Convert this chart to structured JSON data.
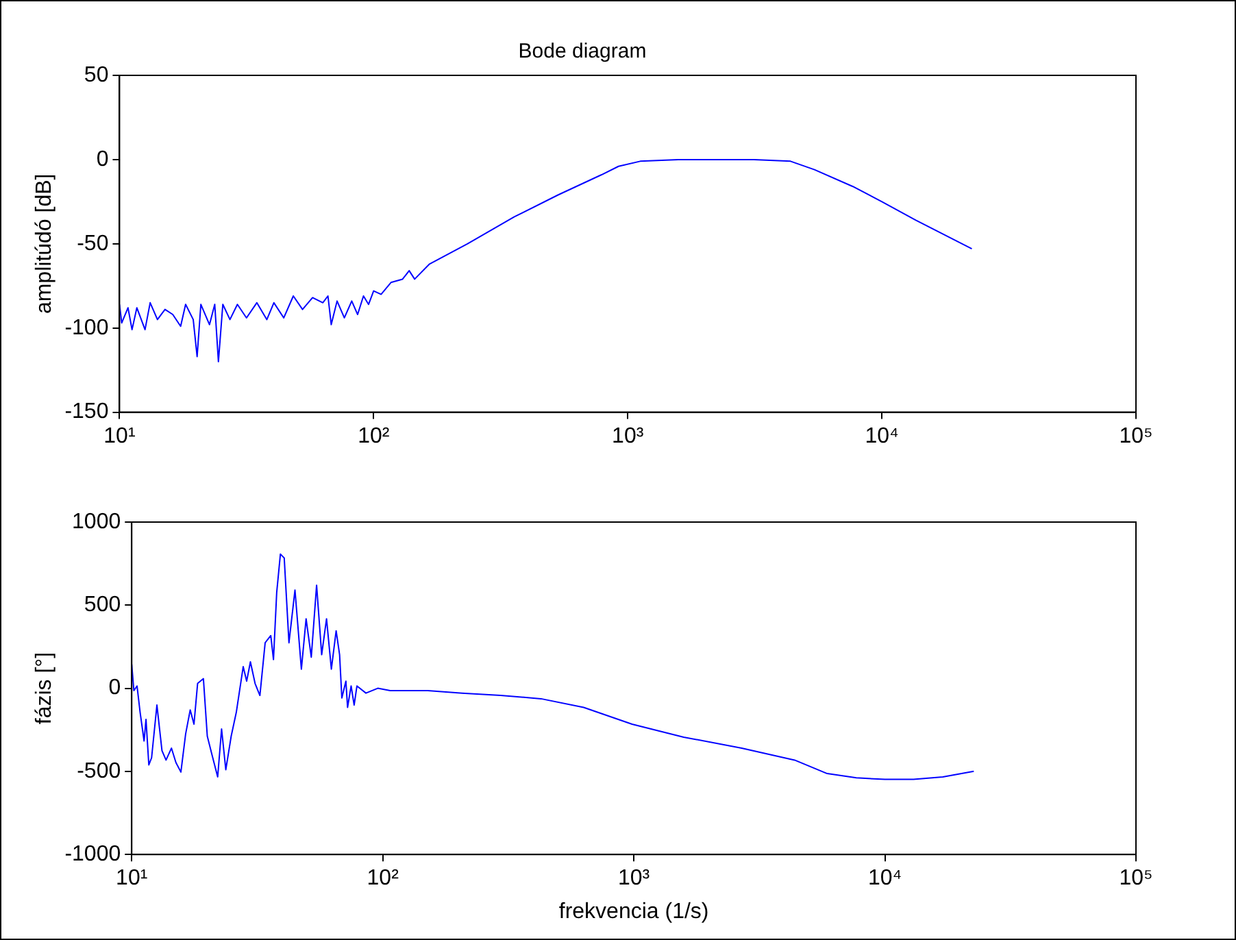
{
  "chart_data": [
    {
      "type": "line",
      "title": "Bode diagram",
      "ylabel": "amplitúdó [dB]",
      "log": "x",
      "grid": false,
      "xlim": [
        10,
        100000
      ],
      "ylim": [
        -150,
        50
      ],
      "xticks": [
        {
          "value": 10,
          "label": "10¹"
        },
        {
          "value": 100,
          "label": "10²"
        },
        {
          "value": 1000,
          "label": "10³"
        },
        {
          "value": 10000,
          "label": "10⁴"
        },
        {
          "value": 100000,
          "label": "10⁵"
        }
      ],
      "yticks": [
        -150,
        -100,
        -50,
        0,
        50
      ],
      "series": [
        {
          "color": "#0000ff",
          "x": [
            10,
            10.2,
            10.8,
            11.2,
            11.7,
            12.6,
            13.2,
            14.1,
            15.1,
            16.2,
            17.4,
            18.2,
            19.5,
            20.2,
            20.9,
            22.6,
            23.7,
            24.5,
            25.5,
            27.2,
            29.1,
            31.6,
            34.7,
            38.0,
            40.5,
            44.3,
            48.3,
            52.5,
            57.5,
            63.1,
            66.1,
            68.1,
            71.8,
            76.7,
            82.0,
            86.5,
            91.2,
            95.5,
            100,
            107,
            117,
            130,
            138,
            145,
            166,
            234,
            358,
            532,
            789,
            920,
            1120,
            1580,
            3140,
            4370,
            5430,
            7690,
            10000,
            13600,
            22600
          ],
          "values": [
            -86,
            -97,
            -88,
            -101,
            -88,
            -101,
            -85,
            -95,
            -89,
            -92,
            -99,
            -86,
            -95,
            -117,
            -86,
            -98,
            -86,
            -120,
            -86,
            -95,
            -86,
            -94,
            -85,
            -95,
            -85,
            -94,
            -81,
            -89,
            -82,
            -85,
            -81,
            -98,
            -84,
            -94,
            -84,
            -92,
            -81,
            -86,
            -78,
            -80,
            -73,
            -71,
            -66,
            -71,
            -62,
            -50,
            -34,
            -21,
            -9,
            -4,
            -1,
            0,
            0,
            -1,
            -6,
            -16,
            -25,
            -36,
            -53
          ]
        }
      ]
    },
    {
      "type": "line",
      "xlabel": "frekvencia (1/s)",
      "ylabel": "fázis [°]",
      "log": "x",
      "grid": false,
      "xlim": [
        10,
        100000
      ],
      "ylim": [
        -1000,
        1000
      ],
      "xticks": [
        {
          "value": 10,
          "label": "10¹"
        },
        {
          "value": 100,
          "label": "10²"
        },
        {
          "value": 1000,
          "label": "10³"
        },
        {
          "value": 10000,
          "label": "10⁴"
        },
        {
          "value": 100000,
          "label": "10⁵"
        }
      ],
      "yticks": [
        -1000,
        -500,
        0,
        500,
        1000
      ],
      "series": [
        {
          "color": "#0000ff",
          "x": [
            10,
            10.2,
            10.5,
            10.8,
            11.2,
            11.4,
            11.7,
            12.0,
            12.6,
            13.2,
            13.7,
            14.4,
            15.0,
            15.7,
            16.4,
            17.1,
            17.7,
            18.3,
            19.3,
            20.0,
            20.9,
            22.0,
            22.8,
            23.7,
            24.9,
            26.1,
            27.8,
            28.7,
            29.7,
            31.0,
            32.4,
            34.0,
            35.8,
            36.7,
            37.8,
            39.1,
            40.5,
            42.3,
            44.7,
            47.4,
            49.5,
            51.9,
            54.5,
            57.1,
            59.7,
            62.4,
            65.2,
            67.3,
            68.7,
            71.3,
            72.4,
            74.8,
            76.9,
            78.9,
            85.7,
            95.5,
            107,
            151,
            207,
            295,
            427,
            631,
            984,
            1580,
            2690,
            4370,
            5890,
            7690,
            10000,
            13000,
            17000,
            22600
          ],
          "values": [
            144,
            -14,
            14,
            -144,
            -317,
            -187,
            -461,
            -418,
            -101,
            -375,
            -432,
            -360,
            -447,
            -504,
            -274,
            -130,
            -216,
            29,
            58,
            -288,
            -403,
            -533,
            -245,
            -490,
            -288,
            -144,
            130,
            43,
            159,
            29,
            -43,
            274,
            317,
            173,
            576,
            807,
            784,
            274,
            591,
            115,
            418,
            187,
            620,
            202,
            418,
            115,
            346,
            202,
            -58,
            43,
            -115,
            14,
            -101,
            14,
            -29,
            0,
            -14,
            -14,
            -29,
            -43,
            -63,
            -115,
            -216,
            -294,
            -360,
            -432,
            -513,
            -539,
            -548,
            -548,
            -533,
            -499
          ]
        }
      ]
    }
  ]
}
